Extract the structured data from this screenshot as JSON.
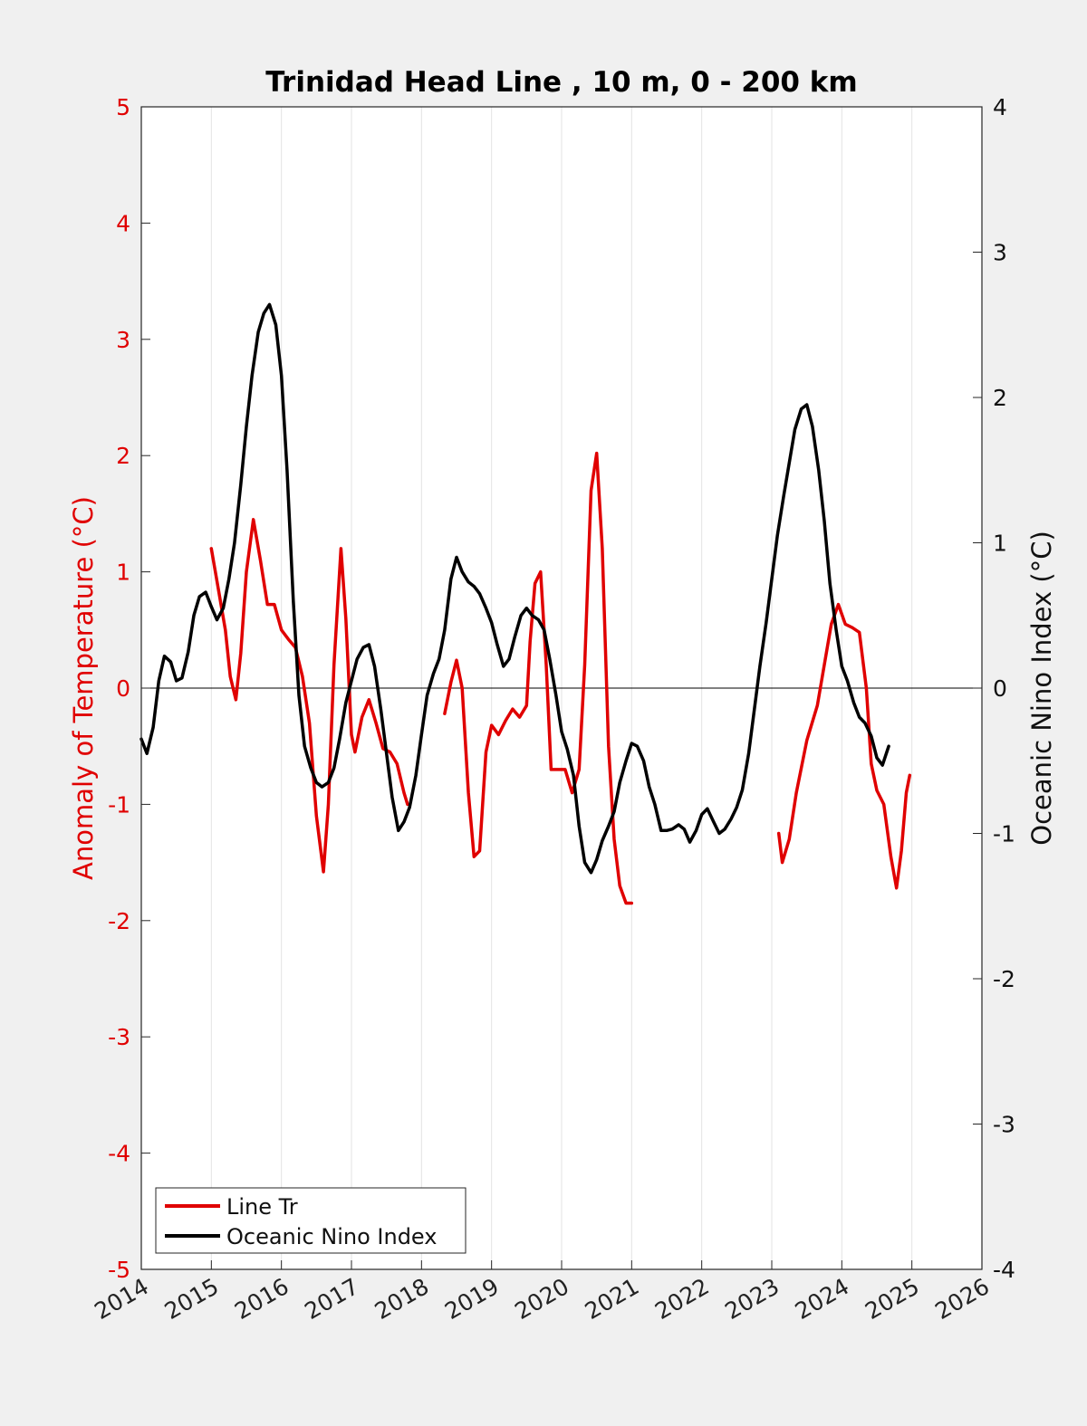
{
  "chart_data": {
    "type": "line",
    "title": "Trinidad Head Line , 10 m, 0 - 200 km",
    "xlabel": "",
    "ylabel_left": "Anomaly of Temperature (°C)",
    "ylabel_right": "Oceanic Nino Index (°C)",
    "xlim": [
      2014,
      2026
    ],
    "ylim_left": [
      -5,
      5
    ],
    "ylim_right": [
      -4,
      4
    ],
    "x_ticks": [
      "2014",
      "2015",
      "2016",
      "2017",
      "2018",
      "2019",
      "2020",
      "2021",
      "2022",
      "2023",
      "2024",
      "2025",
      "2026"
    ],
    "y_ticks_left": [
      "5",
      "4",
      "3",
      "2",
      "1",
      "0",
      "-1",
      "-2",
      "-3",
      "-4",
      "-5"
    ],
    "y_ticks_right": [
      "4",
      "3",
      "2",
      "1",
      "0",
      "-1",
      "-2",
      "-3",
      "-4"
    ],
    "grid": "vertical",
    "legend_position": "bottom-left",
    "colors": {
      "line_tr": "#e00000",
      "oni": "#000000",
      "left_axis": "#e00000"
    },
    "series": [
      {
        "name": "Line Tr",
        "axis": "left",
        "segments": [
          [
            [
              2015.0,
              1.2
            ],
            [
              2015.1,
              0.85
            ],
            [
              2015.2,
              0.5
            ],
            [
              2015.27,
              0.1
            ],
            [
              2015.35,
              -0.1
            ],
            [
              2015.42,
              0.3
            ],
            [
              2015.5,
              1.0
            ],
            [
              2015.6,
              1.45
            ],
            [
              2015.7,
              1.1
            ],
            [
              2015.8,
              0.72
            ],
            [
              2015.9,
              0.72
            ],
            [
              2016.0,
              0.5
            ],
            [
              2016.1,
              0.42
            ],
            [
              2016.2,
              0.35
            ],
            [
              2016.3,
              0.1
            ],
            [
              2016.4,
              -0.3
            ],
            [
              2016.5,
              -1.1
            ],
            [
              2016.6,
              -1.58
            ],
            [
              2016.67,
              -1.0
            ],
            [
              2016.75,
              0.2
            ],
            [
              2016.85,
              1.2
            ],
            [
              2016.92,
              0.6
            ],
            [
              2017.0,
              -0.4
            ],
            [
              2017.05,
              -0.55
            ],
            [
              2017.15,
              -0.25
            ],
            [
              2017.25,
              -0.1
            ],
            [
              2017.35,
              -0.3
            ],
            [
              2017.45,
              -0.52
            ],
            [
              2017.55,
              -0.55
            ],
            [
              2017.65,
              -0.65
            ],
            [
              2017.75,
              -0.9
            ],
            [
              2017.8,
              -1.0
            ]
          ],
          [
            [
              2018.33,
              -0.22
            ],
            [
              2018.42,
              0.05
            ],
            [
              2018.5,
              0.24
            ],
            [
              2018.58,
              0.0
            ],
            [
              2018.67,
              -0.9
            ],
            [
              2018.75,
              -1.45
            ],
            [
              2018.83,
              -1.4
            ],
            [
              2018.92,
              -0.55
            ],
            [
              2019.0,
              -0.32
            ],
            [
              2019.1,
              -0.4
            ],
            [
              2019.2,
              -0.28
            ],
            [
              2019.3,
              -0.18
            ],
            [
              2019.4,
              -0.25
            ],
            [
              2019.5,
              -0.15
            ],
            [
              2019.55,
              0.4
            ],
            [
              2019.62,
              0.9
            ],
            [
              2019.7,
              1.0
            ],
            [
              2019.78,
              0.2
            ],
            [
              2019.85,
              -0.7
            ],
            [
              2019.95,
              -0.7
            ],
            [
              2020.05,
              -0.7
            ],
            [
              2020.15,
              -0.9
            ],
            [
              2020.25,
              -0.7
            ],
            [
              2020.33,
              0.2
            ],
            [
              2020.42,
              1.7
            ],
            [
              2020.5,
              2.02
            ],
            [
              2020.58,
              1.2
            ],
            [
              2020.67,
              -0.5
            ],
            [
              2020.75,
              -1.3
            ],
            [
              2020.83,
              -1.7
            ],
            [
              2020.92,
              -1.85
            ],
            [
              2021.0,
              -1.85
            ]
          ],
          [
            [
              2023.1,
              -1.25
            ],
            [
              2023.15,
              -1.5
            ],
            [
              2023.25,
              -1.3
            ],
            [
              2023.35,
              -0.9
            ],
            [
              2023.5,
              -0.45
            ],
            [
              2023.65,
              -0.15
            ],
            [
              2023.75,
              0.2
            ],
            [
              2023.85,
              0.55
            ],
            [
              2023.95,
              0.72
            ],
            [
              2024.05,
              0.55
            ],
            [
              2024.15,
              0.52
            ],
            [
              2024.25,
              0.48
            ],
            [
              2024.35,
              0.0
            ],
            [
              2024.42,
              -0.65
            ],
            [
              2024.5,
              -0.88
            ],
            [
              2024.6,
              -1.0
            ],
            [
              2024.7,
              -1.45
            ],
            [
              2024.78,
              -1.72
            ],
            [
              2024.85,
              -1.4
            ],
            [
              2024.92,
              -0.9
            ],
            [
              2024.97,
              -0.75
            ]
          ]
        ]
      },
      {
        "name": "Oceanic Nino Index",
        "axis": "right",
        "segments": [
          [
            [
              2014.0,
              -0.35
            ],
            [
              2014.08,
              -0.45
            ],
            [
              2014.17,
              -0.27
            ],
            [
              2014.25,
              0.05
            ],
            [
              2014.33,
              0.22
            ],
            [
              2014.42,
              0.18
            ],
            [
              2014.5,
              0.05
            ],
            [
              2014.58,
              0.07
            ],
            [
              2014.67,
              0.25
            ],
            [
              2014.75,
              0.5
            ],
            [
              2014.83,
              0.63
            ],
            [
              2014.92,
              0.66
            ],
            [
              2015.0,
              0.56
            ],
            [
              2015.08,
              0.47
            ],
            [
              2015.17,
              0.55
            ],
            [
              2015.25,
              0.75
            ],
            [
              2015.33,
              1.0
            ],
            [
              2015.42,
              1.4
            ],
            [
              2015.5,
              1.8
            ],
            [
              2015.58,
              2.15
            ],
            [
              2015.67,
              2.45
            ],
            [
              2015.75,
              2.58
            ],
            [
              2015.83,
              2.64
            ],
            [
              2015.92,
              2.5
            ],
            [
              2016.0,
              2.15
            ],
            [
              2016.08,
              1.5
            ],
            [
              2016.17,
              0.6
            ],
            [
              2016.25,
              -0.05
            ],
            [
              2016.33,
              -0.4
            ],
            [
              2016.42,
              -0.55
            ],
            [
              2016.5,
              -0.65
            ],
            [
              2016.58,
              -0.68
            ],
            [
              2016.67,
              -0.65
            ],
            [
              2016.75,
              -0.55
            ],
            [
              2016.83,
              -0.35
            ],
            [
              2016.92,
              -0.1
            ],
            [
              2017.0,
              0.05
            ],
            [
              2017.08,
              0.2
            ],
            [
              2017.17,
              0.28
            ],
            [
              2017.25,
              0.3
            ],
            [
              2017.33,
              0.15
            ],
            [
              2017.42,
              -0.15
            ],
            [
              2017.5,
              -0.45
            ],
            [
              2017.58,
              -0.75
            ],
            [
              2017.67,
              -0.98
            ],
            [
              2017.75,
              -0.92
            ],
            [
              2017.83,
              -0.82
            ],
            [
              2017.92,
              -0.6
            ],
            [
              2018.0,
              -0.32
            ],
            [
              2018.08,
              -0.05
            ],
            [
              2018.17,
              0.1
            ],
            [
              2018.25,
              0.2
            ],
            [
              2018.33,
              0.4
            ],
            [
              2018.42,
              0.75
            ],
            [
              2018.5,
              0.9
            ],
            [
              2018.58,
              0.8
            ],
            [
              2018.67,
              0.73
            ],
            [
              2018.75,
              0.7
            ],
            [
              2018.83,
              0.65
            ],
            [
              2018.92,
              0.55
            ],
            [
              2019.0,
              0.45
            ],
            [
              2019.08,
              0.3
            ],
            [
              2019.17,
              0.15
            ],
            [
              2019.25,
              0.2
            ],
            [
              2019.33,
              0.35
            ],
            [
              2019.42,
              0.5
            ],
            [
              2019.5,
              0.55
            ],
            [
              2019.58,
              0.5
            ],
            [
              2019.67,
              0.47
            ],
            [
              2019.75,
              0.4
            ],
            [
              2019.83,
              0.2
            ],
            [
              2019.92,
              -0.05
            ],
            [
              2020.0,
              -0.3
            ],
            [
              2020.08,
              -0.42
            ],
            [
              2020.17,
              -0.6
            ],
            [
              2020.25,
              -0.95
            ],
            [
              2020.33,
              -1.2
            ],
            [
              2020.42,
              -1.27
            ],
            [
              2020.5,
              -1.18
            ],
            [
              2020.58,
              -1.05
            ],
            [
              2020.67,
              -0.95
            ],
            [
              2020.75,
              -0.85
            ],
            [
              2020.83,
              -0.65
            ],
            [
              2020.92,
              -0.5
            ],
            [
              2021.0,
              -0.38
            ],
            [
              2021.08,
              -0.4
            ],
            [
              2021.17,
              -0.5
            ],
            [
              2021.25,
              -0.68
            ],
            [
              2021.33,
              -0.8
            ],
            [
              2021.42,
              -0.98
            ],
            [
              2021.5,
              -0.98
            ],
            [
              2021.58,
              -0.97
            ],
            [
              2021.67,
              -0.94
            ],
            [
              2021.75,
              -0.97
            ],
            [
              2021.83,
              -1.06
            ],
            [
              2021.92,
              -0.98
            ],
            [
              2022.0,
              -0.87
            ],
            [
              2022.08,
              -0.83
            ],
            [
              2022.17,
              -0.92
            ],
            [
              2022.25,
              -1.0
            ],
            [
              2022.33,
              -0.97
            ],
            [
              2022.42,
              -0.9
            ],
            [
              2022.5,
              -0.82
            ],
            [
              2022.58,
              -0.7
            ],
            [
              2022.67,
              -0.45
            ],
            [
              2022.75,
              -0.15
            ],
            [
              2022.83,
              0.15
            ],
            [
              2022.92,
              0.45
            ],
            [
              2023.0,
              0.75
            ],
            [
              2023.08,
              1.05
            ],
            [
              2023.17,
              1.32
            ],
            [
              2023.25,
              1.55
            ],
            [
              2023.33,
              1.78
            ],
            [
              2023.42,
              1.92
            ],
            [
              2023.5,
              1.95
            ],
            [
              2023.58,
              1.8
            ],
            [
              2023.67,
              1.5
            ],
            [
              2023.75,
              1.15
            ],
            [
              2023.83,
              0.72
            ],
            [
              2023.92,
              0.4
            ],
            [
              2024.0,
              0.15
            ],
            [
              2024.08,
              0.05
            ],
            [
              2024.17,
              -0.1
            ],
            [
              2024.25,
              -0.2
            ],
            [
              2024.33,
              -0.24
            ],
            [
              2024.42,
              -0.33
            ],
            [
              2024.5,
              -0.48
            ],
            [
              2024.58,
              -0.53
            ],
            [
              2024.67,
              -0.4
            ]
          ]
        ]
      }
    ]
  },
  "legend": {
    "items": [
      {
        "label": "Line Tr",
        "color": "#e00000"
      },
      {
        "label": "Oceanic Nino Index",
        "color": "#000000"
      }
    ]
  }
}
